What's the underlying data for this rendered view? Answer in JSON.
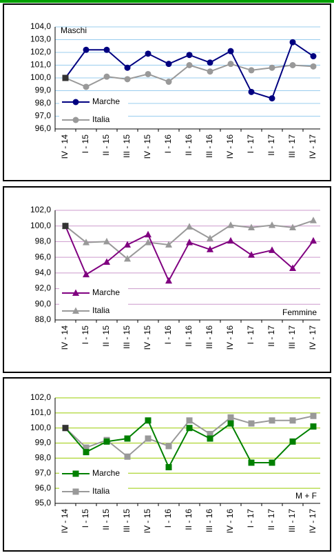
{
  "chart_data": [
    {
      "type": "line",
      "annotation": "Maschi",
      "annotation_color": "#000080",
      "marker": "circle",
      "grid": true,
      "grid_color": "#99ccee",
      "legend": "lower left",
      "categories": [
        "IV - 14",
        "I - 15",
        "II - 15",
        "III - 15",
        "IV - 15",
        "I - 16",
        "II - 16",
        "III - 16",
        "IV - 16",
        "I - 17",
        "II - 17",
        "III - 17",
        "IV - 17"
      ],
      "series": [
        {
          "name": "Marche",
          "color": "#000080",
          "values": [
            100.0,
            102.2,
            102.2,
            100.8,
            101.9,
            101.1,
            101.8,
            101.2,
            102.1,
            98.9,
            98.4,
            102.8,
            101.7
          ]
        },
        {
          "name": "Italia",
          "color": "#999999",
          "values": [
            100.0,
            99.3,
            100.1,
            99.9,
            100.3,
            99.7,
            101.0,
            100.5,
            101.1,
            100.6,
            100.8,
            101.0,
            100.9
          ]
        }
      ],
      "ylim": [
        96,
        104
      ],
      "yticks": [
        {
          "value": 96,
          "label": "96,0"
        },
        {
          "value": 97,
          "label": "97,0"
        },
        {
          "value": 98,
          "label": "98,0"
        },
        {
          "value": 99,
          "label": "99,0"
        },
        {
          "value": 100,
          "label": "100,0"
        },
        {
          "value": 101,
          "label": "101,0"
        },
        {
          "value": 102,
          "label": "102,0"
        },
        {
          "value": 103,
          "label": "103,0"
        },
        {
          "value": 104,
          "label": "104,0"
        }
      ]
    },
    {
      "type": "line",
      "annotation": "Femmine",
      "annotation_color": "#800080",
      "marker": "triangle",
      "grid": true,
      "grid_color": "#cc99cc",
      "legend": "lower left",
      "categories": [
        "IV - 14",
        "I - 15",
        "II - 15",
        "III - 15",
        "IV - 15",
        "I - 16",
        "II - 16",
        "III - 16",
        "IV - 16",
        "I - 17",
        "II - 17",
        "III - 17",
        "IV - 17"
      ],
      "series": [
        {
          "name": "Marche",
          "color": "#800080",
          "values": [
            100.0,
            93.8,
            95.4,
            97.6,
            98.9,
            93.0,
            97.9,
            97.0,
            98.1,
            96.3,
            96.9,
            94.6,
            98.1
          ]
        },
        {
          "name": "Italia",
          "color": "#999999",
          "values": [
            100.0,
            97.9,
            98.0,
            95.8,
            97.9,
            97.6,
            99.9,
            98.4,
            100.1,
            99.8,
            100.1,
            99.8,
            100.7
          ]
        }
      ],
      "ylim": [
        88,
        102
      ],
      "yticks": [
        {
          "value": 88,
          "label": "88,0"
        },
        {
          "value": 90,
          "label": "90,0"
        },
        {
          "value": 92,
          "label": "92,0"
        },
        {
          "value": 94,
          "label": "94,0"
        },
        {
          "value": 96,
          "label": "96,0"
        },
        {
          "value": 98,
          "label": "98,0"
        },
        {
          "value": 100,
          "label": "100,0"
        },
        {
          "value": 102,
          "label": "102,0"
        }
      ]
    },
    {
      "type": "line",
      "annotation": "M + F",
      "annotation_color": "#008000",
      "marker": "square",
      "grid": true,
      "grid_color": "#99cc00",
      "legend": "lower left",
      "categories": [
        "IV - 14",
        "I - 15",
        "II - 15",
        "III - 15",
        "IV - 15",
        "I - 16",
        "II - 16",
        "III - 16",
        "IV - 16",
        "I - 17",
        "II - 17",
        "III - 17",
        "IV - 17"
      ],
      "series": [
        {
          "name": "Marche",
          "color": "#008000",
          "values": [
            100.0,
            98.4,
            99.1,
            99.3,
            100.5,
            97.4,
            100.0,
            99.3,
            100.3,
            97.7,
            97.7,
            99.1,
            100.1
          ]
        },
        {
          "name": "Italia",
          "color": "#999999",
          "values": [
            100.0,
            98.7,
            99.2,
            98.1,
            99.3,
            98.8,
            100.5,
            99.6,
            100.7,
            100.3,
            100.5,
            100.5,
            100.8
          ]
        }
      ],
      "ylim": [
        95,
        102
      ],
      "yticks": [
        {
          "value": 95,
          "label": "95,0"
        },
        {
          "value": 96,
          "label": "96,0"
        },
        {
          "value": 97,
          "label": "97,0"
        },
        {
          "value": 98,
          "label": "98,0"
        },
        {
          "value": 99,
          "label": "99,0"
        },
        {
          "value": 100,
          "label": "100,0"
        },
        {
          "value": 101,
          "label": "101,0"
        },
        {
          "value": 102,
          "label": "102,0"
        }
      ]
    }
  ]
}
